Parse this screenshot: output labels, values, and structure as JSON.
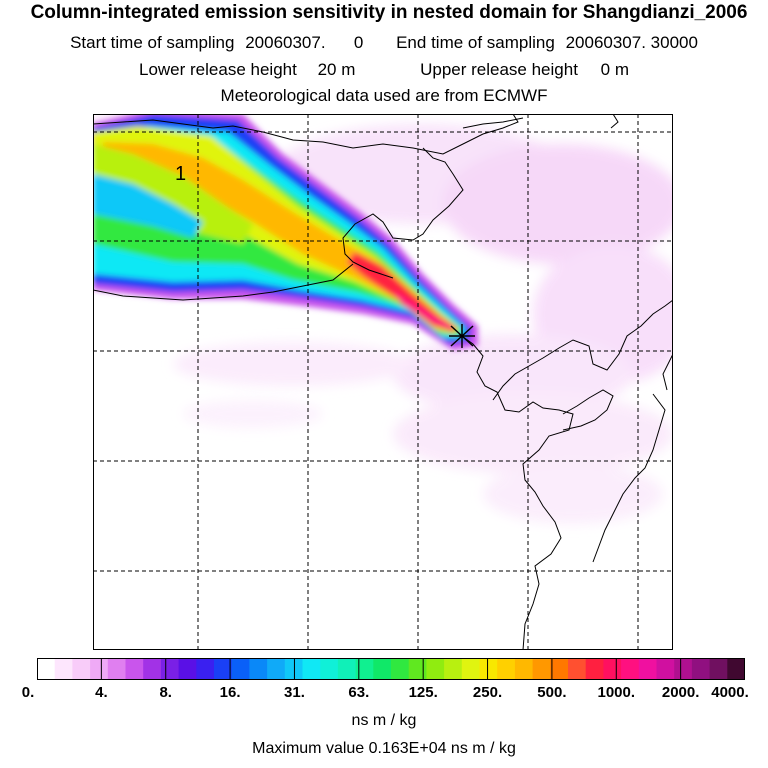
{
  "header": {
    "title": "Column-integrated emission sensitivity in nested domain for Shangdianzi_2006",
    "start_label": "Start time of sampling",
    "start_value": "20060307.      0",
    "end_label": "End time of sampling",
    "end_value": "20060307. 30000",
    "lower_label": "Lower release height",
    "lower_value": "20 m",
    "upper_label": "Upper release height",
    "upper_value": "0 m",
    "met_line": "Meteorological data used are from ECMWF"
  },
  "map": {
    "contour_label": "1",
    "receptor_marker": "receptor-station-x"
  },
  "colorbar": {
    "tick_labels": [
      "0.",
      "4.",
      "8.",
      "16.",
      "31.",
      "63.",
      "125.",
      "250.",
      "500.",
      "1000.",
      "2000.",
      "4000."
    ],
    "colors": [
      "#ffffff",
      "#fde6fd",
      "#f8ccf9",
      "#efaaf6",
      "#e07ff0",
      "#c955ec",
      "#a232e6",
      "#7a20e6",
      "#5a10e6",
      "#3a20f0",
      "#1a40f5",
      "#0a60f8",
      "#0a88f8",
      "#10aaf8",
      "#10c8f8",
      "#10e8f5",
      "#10f0d8",
      "#10f0b8",
      "#10f090",
      "#10e868",
      "#30e840",
      "#60e820",
      "#90ec10",
      "#b8f010",
      "#e0f410",
      "#f8e800",
      "#ffd000",
      "#ffb800",
      "#ff9800",
      "#ff7800",
      "#ff5030",
      "#ff2040",
      "#ff1060",
      "#ff1080",
      "#f010a0",
      "#d010a0",
      "#b01090",
      "#901080",
      "#701060",
      "#400830"
    ],
    "units": "ns m / kg",
    "max_label": "Maximum value  0.163E+04 ns m / kg"
  },
  "colors": {
    "frame": "#000000",
    "grid": "#000000",
    "coast": "#000000"
  }
}
